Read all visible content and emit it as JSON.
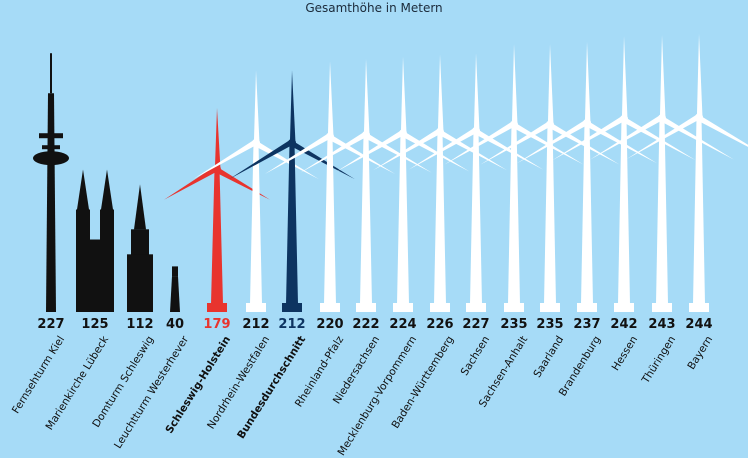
{
  "chart_data": {
    "type": "bar",
    "title": "Gesamthöhe in Metern",
    "categories": [
      "Fernsehturm Kiel",
      "Marienkirche Lübeck",
      "Domturm Schleswig",
      "Leuchtturm Westerhever",
      "Schleswig-Holstein",
      "Nordrhein-Westfalen",
      "Bundesdurchschnitt",
      "Rheinland-Pfalz",
      "Niedersachsen",
      "Mecklenburg-Vorpommern",
      "Baden-Württemberg",
      "Sachsen",
      "Sachsen-Anhalt",
      "Saarland",
      "Brandenburg",
      "Hessen",
      "Thüringen",
      "Bayern"
    ],
    "values": [
      227,
      125,
      112,
      40,
      179,
      212,
      212,
      220,
      222,
      224,
      226,
      227,
      235,
      235,
      237,
      242,
      243,
      244
    ],
    "mark_types": [
      "tv-tower",
      "church",
      "cathedral-tower",
      "lighthouse",
      "turbine",
      "turbine",
      "turbine",
      "turbine",
      "turbine",
      "turbine",
      "turbine",
      "turbine",
      "turbine",
      "turbine",
      "turbine",
      "turbine",
      "turbine",
      "turbine"
    ],
    "highlight": {
      "Schleswig-Holstein": "#e8342e",
      "Bundesdurchschnitt": "#0d3461"
    },
    "bold_labels": [
      "Schleswig-Holstein",
      "Bundesdurchschnitt"
    ],
    "colors": {
      "background": "#a6dbf7",
      "landmark": "#111111",
      "turbine": "#ffffff"
    }
  }
}
